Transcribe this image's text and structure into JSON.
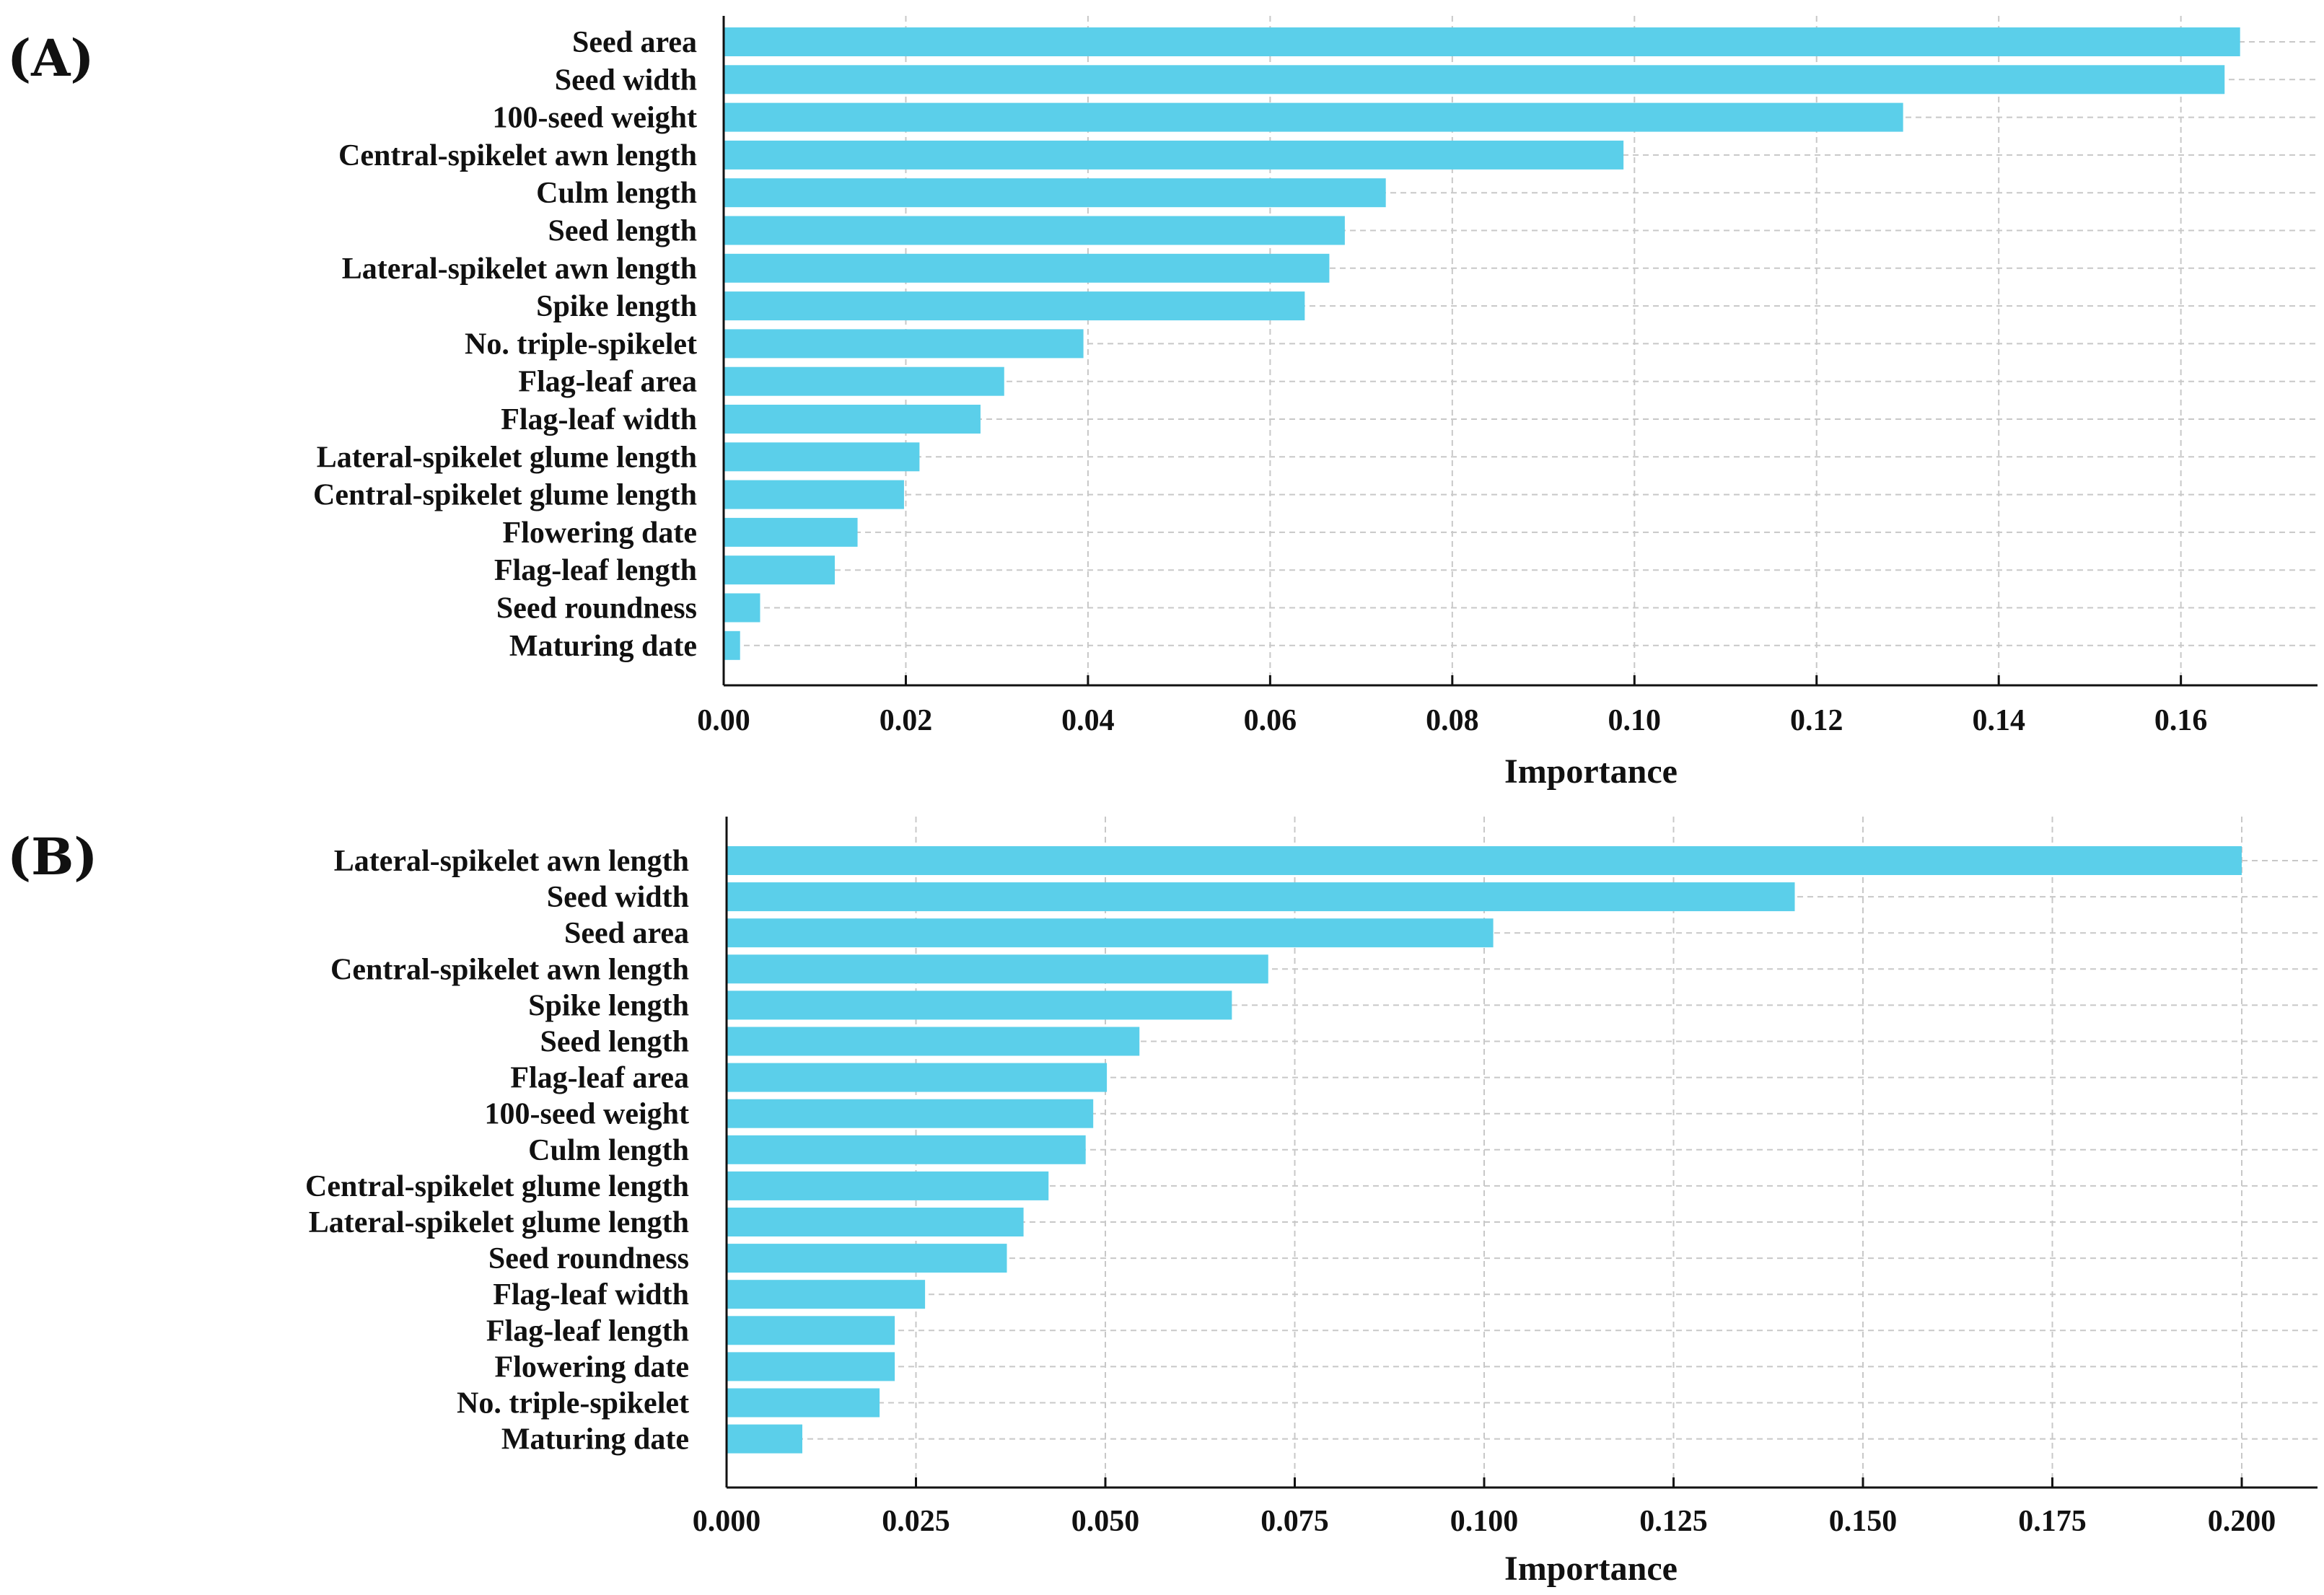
{
  "chart_data": [
    {
      "type": "bar",
      "orientation": "horizontal",
      "panel_label": "(A)",
      "xlabel": "Importance",
      "xlim": [
        0,
        0.175
      ],
      "xticks": [
        0.0,
        0.02,
        0.04,
        0.06,
        0.08,
        0.1,
        0.12,
        0.14,
        0.16
      ],
      "xtick_labels": [
        "0.00",
        "0.02",
        "0.04",
        "0.06",
        "0.08",
        "0.10",
        "0.12",
        "0.14",
        "0.16"
      ],
      "grid": true,
      "bar_color": "#5bcfea",
      "categories": [
        "Seed area",
        "Seed width",
        "100-seed weight",
        "Central-spikelet awn length",
        "Culm length",
        "Seed length",
        "Lateral-spikelet awn length",
        "Spike length",
        "No. triple-spikelet",
        "Flag-leaf area",
        "Flag-leaf width",
        "Lateral-spikelet glume length",
        "Central-spikelet glume length",
        "Flowering date",
        "Flag-leaf length",
        "Seed roundness",
        "Maturing date"
      ],
      "values": [
        0.1665,
        0.1648,
        0.1295,
        0.0988,
        0.0727,
        0.0682,
        0.0665,
        0.0638,
        0.0395,
        0.0308,
        0.0282,
        0.0215,
        0.0198,
        0.0147,
        0.0122,
        0.004,
        0.0018
      ]
    },
    {
      "type": "bar",
      "orientation": "horizontal",
      "panel_label": "(B)",
      "xlabel": "Importance",
      "xlim": [
        0,
        0.21
      ],
      "xticks": [
        0.0,
        0.025,
        0.05,
        0.075,
        0.1,
        0.125,
        0.15,
        0.175,
        0.2
      ],
      "xtick_labels": [
        "0.000",
        "0.025",
        "0.050",
        "0.075",
        "0.100",
        "0.125",
        "0.150",
        "0.175",
        "0.200"
      ],
      "grid": true,
      "bar_color": "#5bcfea",
      "categories": [
        "Lateral-spikelet awn length",
        "Seed width",
        "Seed area",
        "Central-spikelet awn length",
        "Spike length",
        "Seed length",
        "Flag-leaf area",
        "100-seed weight",
        "Culm length",
        "Central-spikelet glume length",
        "Lateral-spikelet glume length",
        "Seed roundness",
        "Flag-leaf width",
        "Flag-leaf length",
        "Flowering date",
        "No. triple-spikelet",
        "Maturing date"
      ],
      "values": [
        0.2,
        0.141,
        0.1012,
        0.0715,
        0.0667,
        0.0545,
        0.0502,
        0.0484,
        0.0474,
        0.0425,
        0.0392,
        0.037,
        0.0262,
        0.0222,
        0.0222,
        0.0202,
        0.01
      ]
    }
  ]
}
